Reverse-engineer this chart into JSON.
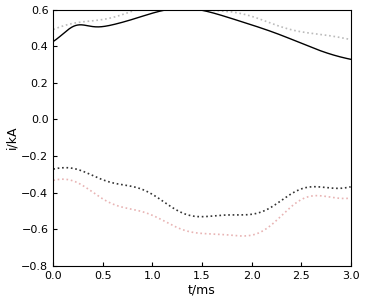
{
  "xlabel": "t/ms",
  "ylabel": "i/kA",
  "xlim": [
    0,
    3
  ],
  "ylim": [
    -0.8,
    0.6
  ],
  "yticks": [
    -0.8,
    -0.6,
    -0.4,
    -0.2,
    0,
    0.2,
    0.4,
    0.6
  ],
  "xticks": [
    0,
    0.5,
    1,
    1.5,
    2,
    2.5,
    3
  ],
  "line_solid_color": "#000000",
  "line_gray_color": "#bbbbbb",
  "line_dark_color": "#333333",
  "line_pink_color": "#e8b4b4",
  "background": "#ffffff"
}
